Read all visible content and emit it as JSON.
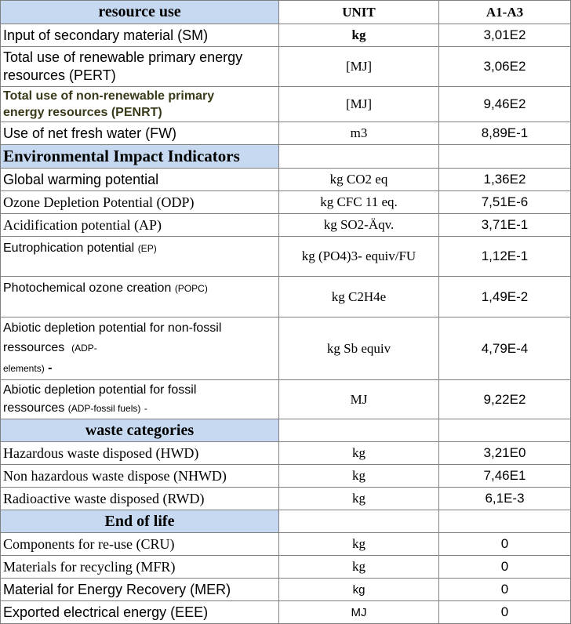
{
  "header": {
    "col1": "resource use",
    "col2": "UNIT",
    "col3": "A1-A3"
  },
  "resource_use": {
    "rows": [
      {
        "label": "Input of secondary material (SM)",
        "unit": "kg",
        "value": "3,01E2"
      },
      {
        "label_line1": "Total use of renewable primary energy",
        "label_line2": "resources (PERT)",
        "unit": "[MJ]",
        "value": "3,06E2"
      },
      {
        "label_line1": "Total use of non-renewable primary",
        "label_line2": "energy resources (PENRT)",
        "unit": "[MJ]",
        "value": "9,46E2"
      },
      {
        "label": "Use of net fresh water (FW)",
        "unit": "m3",
        "value": "8,89E-1"
      }
    ]
  },
  "environmental_impact": {
    "title": "Environmental Impact Indicators",
    "rows": [
      {
        "label": "Global warming potential",
        "unit": "kg CO2 eq",
        "value": "1,36E2"
      },
      {
        "label": "Ozone Depletion Potential (ODP)",
        "unit": "kg CFC 11 eq.",
        "value": "7,51E-6"
      },
      {
        "label": "Acidification potential (AP)",
        "unit": "kg SO2-Äqv.",
        "value": "3,71E-1"
      },
      {
        "label_main": "Eutrophication potential",
        "label_paren": "(EP)",
        "unit": "kg (PO4)3-  equiv/FU",
        "value": "1,12E-1"
      },
      {
        "label_main": "Photochemical ozone creation",
        "label_paren": "(POPC)",
        "unit": "kg C2H4e",
        "value": "1,49E-2"
      },
      {
        "label_line1": "Abiotic depletion potential for non-fossil",
        "label_line2": "ressources",
        "label_line2_paren": "(ADP-",
        "label_line3": "elements)",
        "label_line3_tail": "-",
        "unit": "kg Sb equiv",
        "value": "4,79E-4"
      },
      {
        "label_line1": "Abiotic depletion potential for fossil",
        "label_line2": "ressources",
        "label_line2_paren": "(ADP-fossil fuels)",
        "label_line2_tail": "-",
        "unit": "MJ",
        "value": "9,22E2"
      }
    ]
  },
  "waste_categories": {
    "title": "waste categories",
    "rows": [
      {
        "label": "Hazardous waste disposed (HWD)",
        "unit": "kg",
        "value": "3,21E0"
      },
      {
        "label": "Non hazardous waste dispose (NHWD)",
        "unit": "kg",
        "value": "7,46E1"
      },
      {
        "label": "Radioactive waste disposed (RWD)",
        "unit": "kg",
        "value": "6,1E-3"
      }
    ]
  },
  "end_of_life": {
    "title": "End of life",
    "rows": [
      {
        "label": "Components for re-use (CRU)",
        "unit": "kg",
        "value": "0"
      },
      {
        "label": "Materials for recycling (MFR)",
        "unit": "kg",
        "value": "0"
      },
      {
        "label": "Material for Energy Recovery (MER)",
        "unit": "kg",
        "value": "0"
      },
      {
        "label": "Exported electrical energy (EEE)",
        "unit": "MJ",
        "value": "0"
      }
    ]
  }
}
